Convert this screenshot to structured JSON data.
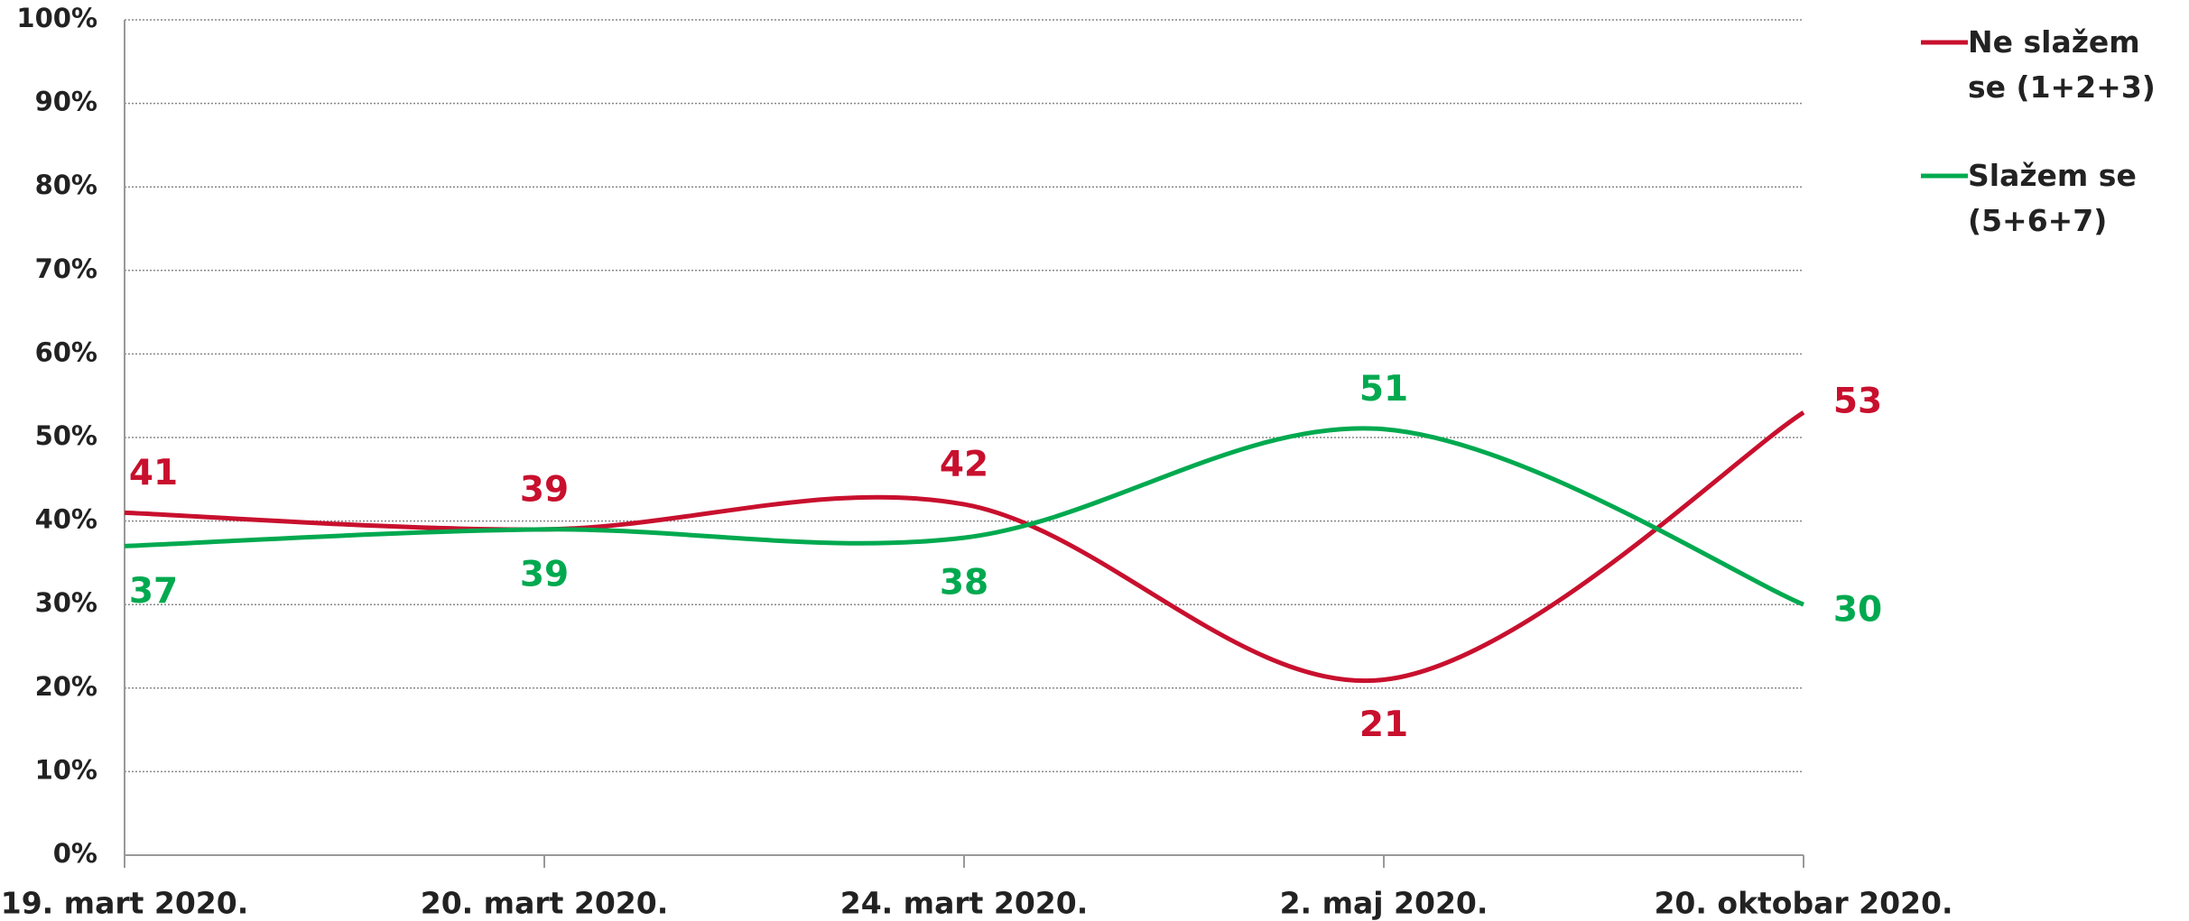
{
  "chart_data": {
    "type": "line",
    "categories": [
      "19. mart 2020.",
      "20. mart 2020.",
      "24. mart 2020.",
      "2. maj 2020.",
      "20. oktobar 2020."
    ],
    "series": [
      {
        "name": "Ne slažem se (1+2+3)",
        "color": "#c8102e",
        "values": [
          41,
          39,
          42,
          21,
          53
        ]
      },
      {
        "name": "Slažem se (5+6+7)",
        "color": "#00a94f",
        "values": [
          37,
          39,
          38,
          51,
          30
        ]
      }
    ],
    "ylim": [
      0,
      100
    ],
    "yticks": [
      {
        "value": 0,
        "label": "0%"
      },
      {
        "value": 10,
        "label": "10%"
      },
      {
        "value": 20,
        "label": "20%"
      },
      {
        "value": 30,
        "label": "30%"
      },
      {
        "value": 40,
        "label": "40%"
      },
      {
        "value": 50,
        "label": "50%"
      },
      {
        "value": 60,
        "label": "60%"
      },
      {
        "value": 70,
        "label": "70%"
      },
      {
        "value": 80,
        "label": "80%"
      },
      {
        "value": 90,
        "label": "90%"
      },
      {
        "value": 100,
        "label": "100%"
      }
    ],
    "grid": true,
    "smooth": true,
    "legend": "right"
  }
}
